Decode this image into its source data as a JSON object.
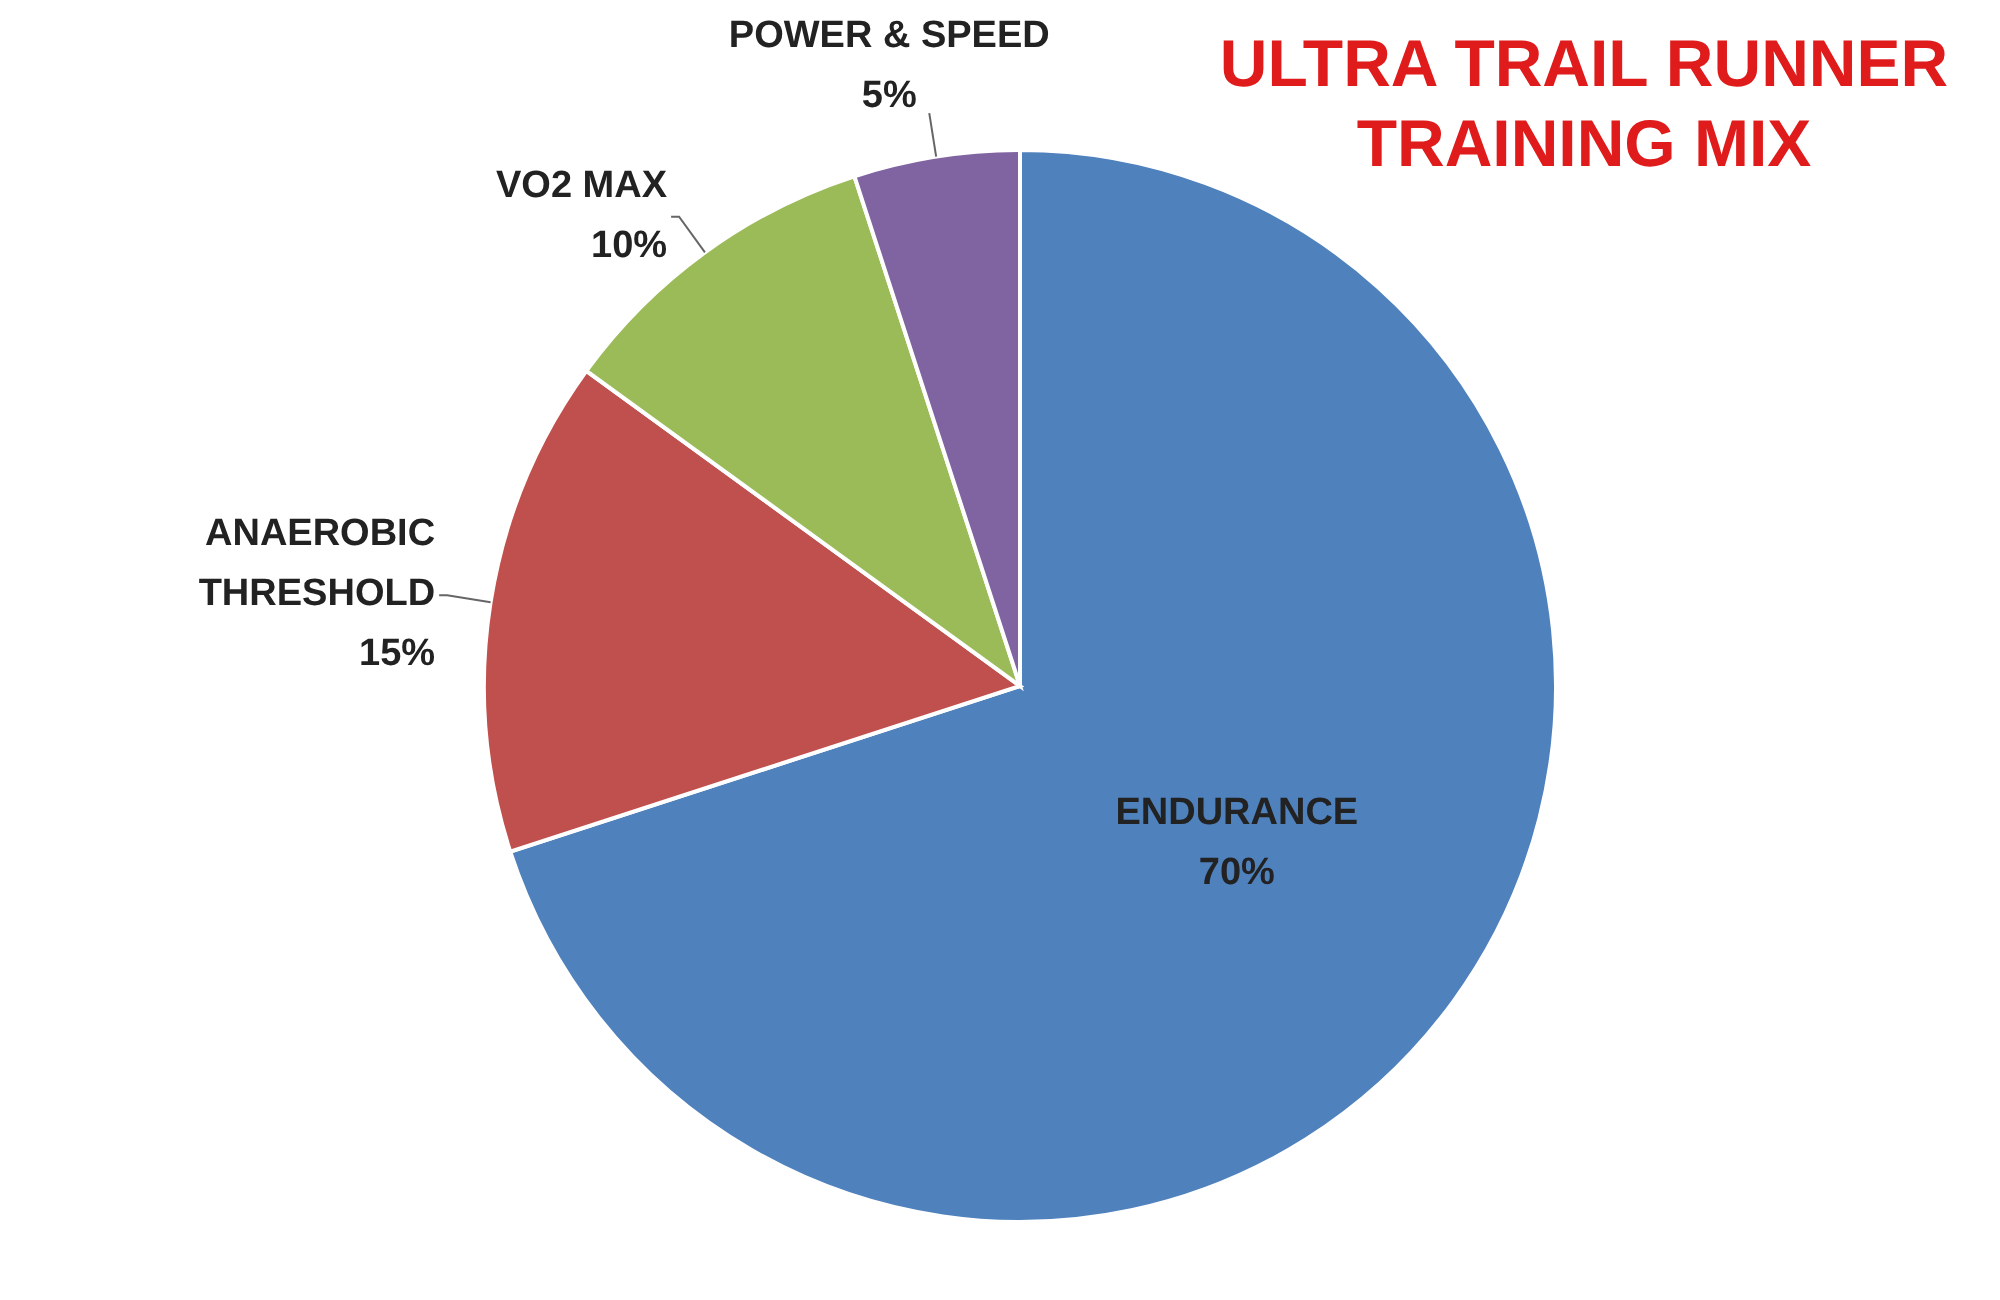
{
  "chart_data": {
    "type": "pie",
    "title": "ULTRA TRAIL RUNNER TRAINING MIX",
    "categories": [
      "ENDURANCE",
      "ANAEROBIC THRESHOLD",
      "VO2 MAX",
      "POWER & SPEED"
    ],
    "values": [
      70,
      15,
      10,
      5
    ],
    "value_labels": [
      "70%",
      "15%",
      "10%",
      "5%"
    ],
    "colors": [
      "#4f81bd",
      "#c0504d",
      "#9bbb59",
      "#8064a2"
    ]
  }
}
